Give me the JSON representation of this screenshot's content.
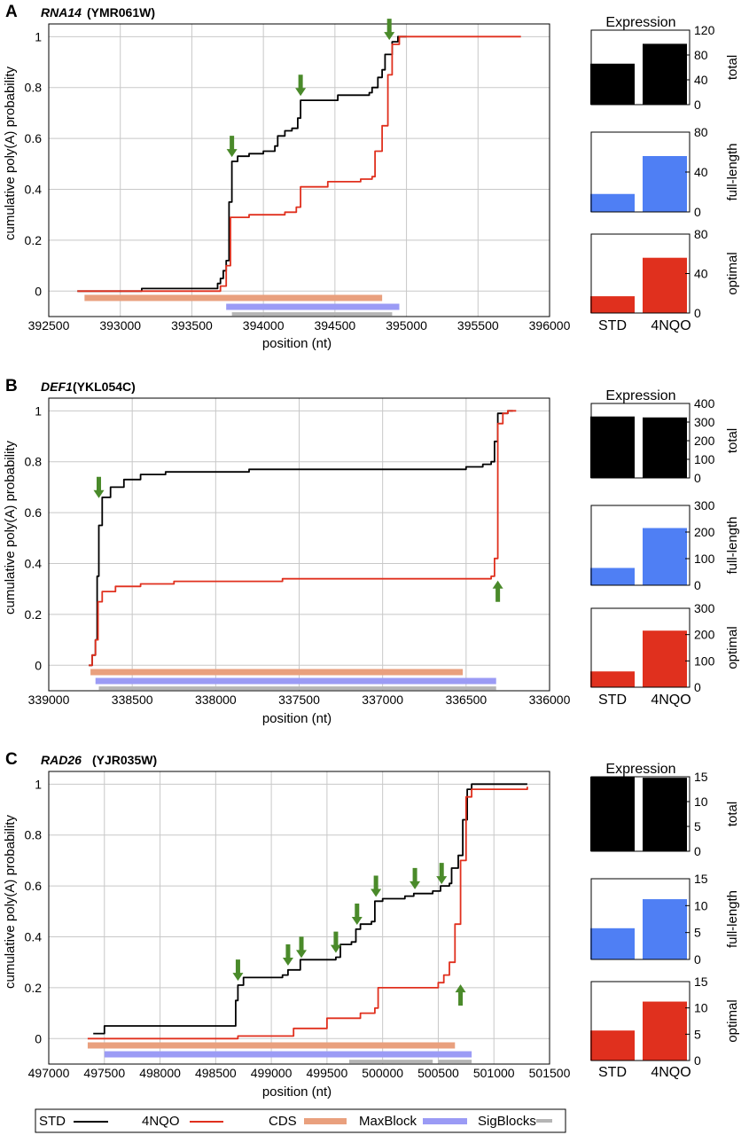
{
  "colors": {
    "std": "#000000",
    "nqo": "#e0301e",
    "cds": "#e9a07e",
    "maxblock": "#9b9bf5",
    "sigblocks": "#b5b5b5",
    "arrow": "#4a8a2a",
    "total_bar": "#000000",
    "fulllength_bar": "#4f7ff4",
    "optimal_bar": "#e0301e",
    "grid": "#c8c8c8"
  },
  "legend": {
    "std": "STD",
    "nqo": "4NQO",
    "cds": "CDS",
    "maxblock": "MaxBlock",
    "sigblocks": "SigBlocks"
  },
  "chart_data": [
    {
      "type": "line",
      "panel": "A",
      "gene": "RNA14",
      "systematic": "(YMR061W)",
      "xlabel": "position (nt)",
      "ylabel": "cumulative poly(A) probability",
      "xlim": [
        392500,
        396000
      ],
      "ylim": [
        -0.1,
        1.05
      ],
      "xticks": [
        392500,
        393000,
        393500,
        394000,
        394500,
        395000,
        395500,
        396000
      ],
      "yticks": [
        0,
        0.2,
        0.4,
        0.6,
        0.8,
        1
      ],
      "series": [
        {
          "name": "STD",
          "points": [
            [
              392700,
              0
            ],
            [
              393100,
              0
            ],
            [
              393150,
              0.01
            ],
            [
              393640,
              0.01
            ],
            [
              393680,
              0.03
            ],
            [
              393700,
              0.05
            ],
            [
              393720,
              0.08
            ],
            [
              393740,
              0.12
            ],
            [
              393760,
              0.35
            ],
            [
              393780,
              0.51
            ],
            [
              393820,
              0.53
            ],
            [
              393900,
              0.54
            ],
            [
              394000,
              0.55
            ],
            [
              394080,
              0.57
            ],
            [
              394100,
              0.61
            ],
            [
              394150,
              0.63
            ],
            [
              394200,
              0.64
            ],
            [
              394240,
              0.68
            ],
            [
              394260,
              0.75
            ],
            [
              394500,
              0.75
            ],
            [
              394520,
              0.77
            ],
            [
              394740,
              0.78
            ],
            [
              394760,
              0.8
            ],
            [
              394800,
              0.84
            ],
            [
              394830,
              0.87
            ],
            [
              394850,
              0.93
            ],
            [
              394900,
              0.98
            ],
            [
              394940,
              1.0
            ],
            [
              395000,
              1.0
            ]
          ]
        },
        {
          "name": "4NQO",
          "points": [
            [
              392700,
              0
            ],
            [
              393650,
              0
            ],
            [
              393700,
              0.02
            ],
            [
              393740,
              0.1
            ],
            [
              393770,
              0.29
            ],
            [
              393900,
              0.3
            ],
            [
              394050,
              0.3
            ],
            [
              394150,
              0.31
            ],
            [
              394230,
              0.33
            ],
            [
              394260,
              0.41
            ],
            [
              394450,
              0.43
            ],
            [
              394680,
              0.44
            ],
            [
              394760,
              0.45
            ],
            [
              394780,
              0.55
            ],
            [
              394830,
              0.65
            ],
            [
              394870,
              0.85
            ],
            [
              394900,
              0.97
            ],
            [
              394950,
              1.0
            ],
            [
              395800,
              1.0
            ]
          ]
        }
      ],
      "cds": [
        392750,
        394830
      ],
      "maxblock": [
        393740,
        394950
      ],
      "sigblocks": [
        [
          393780,
          394900
        ]
      ],
      "arrows": [
        {
          "x": 393780,
          "y": 0.52,
          "dir": "down"
        },
        {
          "x": 394260,
          "y": 0.76,
          "dir": "down"
        },
        {
          "x": 394880,
          "y": 0.98,
          "dir": "down"
        }
      ],
      "bars": {
        "categories": [
          "STD",
          "4NQO"
        ],
        "expression_title": "Expression",
        "total": {
          "label": "total",
          "ylim": [
            0,
            120
          ],
          "ticks": [
            0,
            40,
            80,
            120
          ],
          "values": [
            66,
            98
          ]
        },
        "full_length": {
          "label": "full-length",
          "ylim": [
            0,
            80
          ],
          "ticks": [
            0,
            40,
            80
          ],
          "values": [
            18,
            56
          ]
        },
        "optimal": {
          "label": "optimal",
          "ylim": [
            0,
            80
          ],
          "ticks": [
            0,
            40,
            80
          ],
          "values": [
            17,
            56
          ]
        }
      }
    },
    {
      "type": "line",
      "panel": "B",
      "gene": "DEF1",
      "systematic": "(YKL054C)",
      "xlabel": "position (nt)",
      "ylabel": "cumulative poly(A) probability",
      "xlim": [
        339000,
        336000
      ],
      "ylim": [
        -0.1,
        1.05
      ],
      "xticks": [
        339000,
        338500,
        338000,
        337500,
        337000,
        336500,
        336000
      ],
      "yticks": [
        0,
        0.2,
        0.4,
        0.6,
        0.8,
        1
      ],
      "series": [
        {
          "name": "STD",
          "points": [
            [
              338760,
              0
            ],
            [
              338740,
              0.04
            ],
            [
              338720,
              0.1
            ],
            [
              338710,
              0.35
            ],
            [
              338700,
              0.55
            ],
            [
              338680,
              0.66
            ],
            [
              338630,
              0.7
            ],
            [
              338550,
              0.73
            ],
            [
              338450,
              0.75
            ],
            [
              338300,
              0.76
            ],
            [
              337800,
              0.77
            ],
            [
              336500,
              0.78
            ],
            [
              336400,
              0.79
            ],
            [
              336350,
              0.8
            ],
            [
              336330,
              0.88
            ],
            [
              336310,
              0.99
            ],
            [
              336250,
              1.0
            ],
            [
              336220,
              1.0
            ]
          ]
        },
        {
          "name": "4NQO",
          "points": [
            [
              338760,
              0
            ],
            [
              338740,
              0.04
            ],
            [
              338720,
              0.1
            ],
            [
              338705,
              0.25
            ],
            [
              338680,
              0.29
            ],
            [
              338600,
              0.31
            ],
            [
              338450,
              0.32
            ],
            [
              338250,
              0.33
            ],
            [
              337600,
              0.34
            ],
            [
              336450,
              0.34
            ],
            [
              336350,
              0.35
            ],
            [
              336330,
              0.42
            ],
            [
              336310,
              0.95
            ],
            [
              336280,
              0.99
            ],
            [
              336250,
              1.0
            ],
            [
              336200,
              1.0
            ]
          ]
        }
      ],
      "cds": [
        338750,
        336520
      ],
      "maxblock": [
        338720,
        336320
      ],
      "sigblocks": [
        [
          338700,
          336320
        ]
      ],
      "arrows": [
        {
          "x": 338700,
          "y": 0.65,
          "dir": "down"
        },
        {
          "x": 336310,
          "y": 0.34,
          "dir": "up"
        }
      ],
      "bars": {
        "categories": [
          "STD",
          "4NQO"
        ],
        "expression_title": "Expression",
        "total": {
          "label": "total",
          "ylim": [
            0,
            400
          ],
          "ticks": [
            0,
            100,
            200,
            300,
            400
          ],
          "values": [
            330,
            325
          ]
        },
        "full_length": {
          "label": "full-length",
          "ylim": [
            0,
            300
          ],
          "ticks": [
            0,
            100,
            200,
            300
          ],
          "values": [
            65,
            215
          ]
        },
        "optimal": {
          "label": "optimal",
          "ylim": [
            0,
            300
          ],
          "ticks": [
            0,
            100,
            200,
            300
          ],
          "values": [
            60,
            215
          ]
        }
      }
    },
    {
      "type": "line",
      "panel": "C",
      "gene": "RAD26",
      "systematic": "(YJR035W)",
      "xlabel": "position (nt)",
      "ylabel": "cumulative poly(A) probability",
      "xlim": [
        497000,
        501500
      ],
      "ylim": [
        -0.1,
        1.05
      ],
      "xticks": [
        497000,
        497500,
        498000,
        498500,
        499000,
        499500,
        500000,
        500500,
        501000,
        501500
      ],
      "yticks": [
        0,
        0.2,
        0.4,
        0.6,
        0.8,
        1
      ],
      "series": [
        {
          "name": "STD",
          "points": [
            [
              497400,
              0.02
            ],
            [
              497480,
              0.02
            ],
            [
              497500,
              0.05
            ],
            [
              498650,
              0.05
            ],
            [
              498680,
              0.15
            ],
            [
              498700,
              0.21
            ],
            [
              498750,
              0.24
            ],
            [
              499000,
              0.24
            ],
            [
              499100,
              0.25
            ],
            [
              499150,
              0.27
            ],
            [
              499230,
              0.27
            ],
            [
              499260,
              0.31
            ],
            [
              499580,
              0.32
            ],
            [
              499620,
              0.37
            ],
            [
              499720,
              0.38
            ],
            [
              499760,
              0.43
            ],
            [
              499800,
              0.45
            ],
            [
              499900,
              0.46
            ],
            [
              499930,
              0.54
            ],
            [
              500000,
              0.55
            ],
            [
              500200,
              0.56
            ],
            [
              500280,
              0.57
            ],
            [
              500450,
              0.58
            ],
            [
              500520,
              0.6
            ],
            [
              500600,
              0.61
            ],
            [
              500620,
              0.67
            ],
            [
              500680,
              0.72
            ],
            [
              500720,
              0.86
            ],
            [
              500760,
              0.98
            ],
            [
              500800,
              1.0
            ],
            [
              501300,
              1.0
            ]
          ]
        },
        {
          "name": "4NQO",
          "points": [
            [
              497350,
              0
            ],
            [
              498650,
              0
            ],
            [
              498700,
              0.01
            ],
            [
              499200,
              0.04
            ],
            [
              499500,
              0.08
            ],
            [
              499800,
              0.1
            ],
            [
              499930,
              0.12
            ],
            [
              499960,
              0.2
            ],
            [
              500500,
              0.22
            ],
            [
              500550,
              0.25
            ],
            [
              500600,
              0.3
            ],
            [
              500650,
              0.45
            ],
            [
              500700,
              0.7
            ],
            [
              500750,
              0.95
            ],
            [
              500800,
              0.98
            ],
            [
              501300,
              0.99
            ]
          ]
        }
      ],
      "cds": [
        497350,
        500650
      ],
      "maxblock": [
        497500,
        500800
      ],
      "sigblocks": [
        [
          499700,
          500450
        ],
        [
          500500,
          500800
        ]
      ],
      "arrows": [
        {
          "x": 498700,
          "y": 0.22,
          "dir": "down"
        },
        {
          "x": 499150,
          "y": 0.28,
          "dir": "down"
        },
        {
          "x": 499270,
          "y": 0.31,
          "dir": "down"
        },
        {
          "x": 499580,
          "y": 0.33,
          "dir": "down"
        },
        {
          "x": 499770,
          "y": 0.44,
          "dir": "down"
        },
        {
          "x": 499940,
          "y": 0.55,
          "dir": "down"
        },
        {
          "x": 500290,
          "y": 0.58,
          "dir": "down"
        },
        {
          "x": 500530,
          "y": 0.6,
          "dir": "down"
        },
        {
          "x": 500700,
          "y": 0.22,
          "dir": "up"
        }
      ],
      "bars": {
        "categories": [
          "STD",
          "4NQO"
        ],
        "expression_title": "Expression",
        "total": {
          "label": "total",
          "ylim": [
            0,
            15
          ],
          "ticks": [
            0,
            5,
            10,
            15
          ],
          "values": [
            15,
            14.8
          ]
        },
        "full_length": {
          "label": "full-length",
          "ylim": [
            0,
            15
          ],
          "ticks": [
            0,
            5,
            10,
            15
          ],
          "values": [
            5.8,
            11.2
          ]
        },
        "optimal": {
          "label": "optimal",
          "ylim": [
            0,
            15
          ],
          "ticks": [
            0,
            5,
            10,
            15
          ],
          "values": [
            5.7,
            11.2
          ]
        }
      }
    }
  ]
}
